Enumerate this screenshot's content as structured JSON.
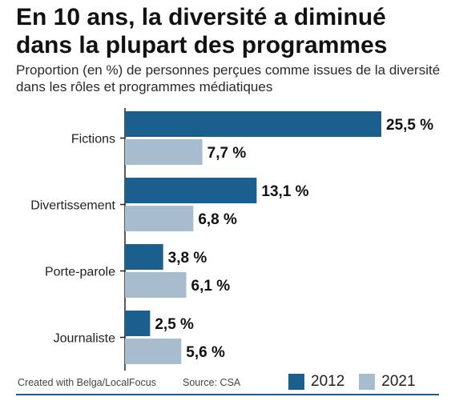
{
  "title": "En 10 ans, la diversité a diminué dans la plupart des programmes",
  "subtitle": "Proportion (en %) de personnes perçues comme issues de la diversité dans les rôles et programmes médiatiques",
  "credit": "Created with Belga/LocalFocus",
  "source": "Source:  CSA",
  "colors": {
    "series_2012": "#1b5f8f",
    "series_2021": "#a7bccd",
    "axis": "#222222",
    "divider": "#1f5e8a"
  },
  "legend": [
    {
      "label": "2012",
      "color": "#1b5f8f"
    },
    {
      "label": "2021",
      "color": "#a7bccd"
    }
  ],
  "chart_data": {
    "type": "bar",
    "orientation": "horizontal",
    "title": "En 10 ans, la diversité a diminué dans la plupart des programmes",
    "subtitle": "Proportion (en %) de personnes perçues comme issues de la diversité dans les rôles et programmes médiatiques",
    "categories": [
      "Fictions",
      "Divertissement",
      "Porte-parole",
      "Journaliste"
    ],
    "series": [
      {
        "name": "2012",
        "values": [
          25.5,
          13.1,
          3.8,
          2.5
        ],
        "labels": [
          "25,5 %",
          "13,1 %",
          "3,8 %",
          "2,5 %"
        ],
        "color": "#1b5f8f"
      },
      {
        "name": "2021",
        "values": [
          7.7,
          6.8,
          6.1,
          5.6
        ],
        "labels": [
          "7,7 %",
          "6,8 %",
          "6,1 %",
          "5,6 %"
        ],
        "color": "#a7bccd"
      }
    ],
    "xlim": [
      0,
      25.5
    ],
    "grid": false,
    "legend_position": "bottom-right"
  }
}
